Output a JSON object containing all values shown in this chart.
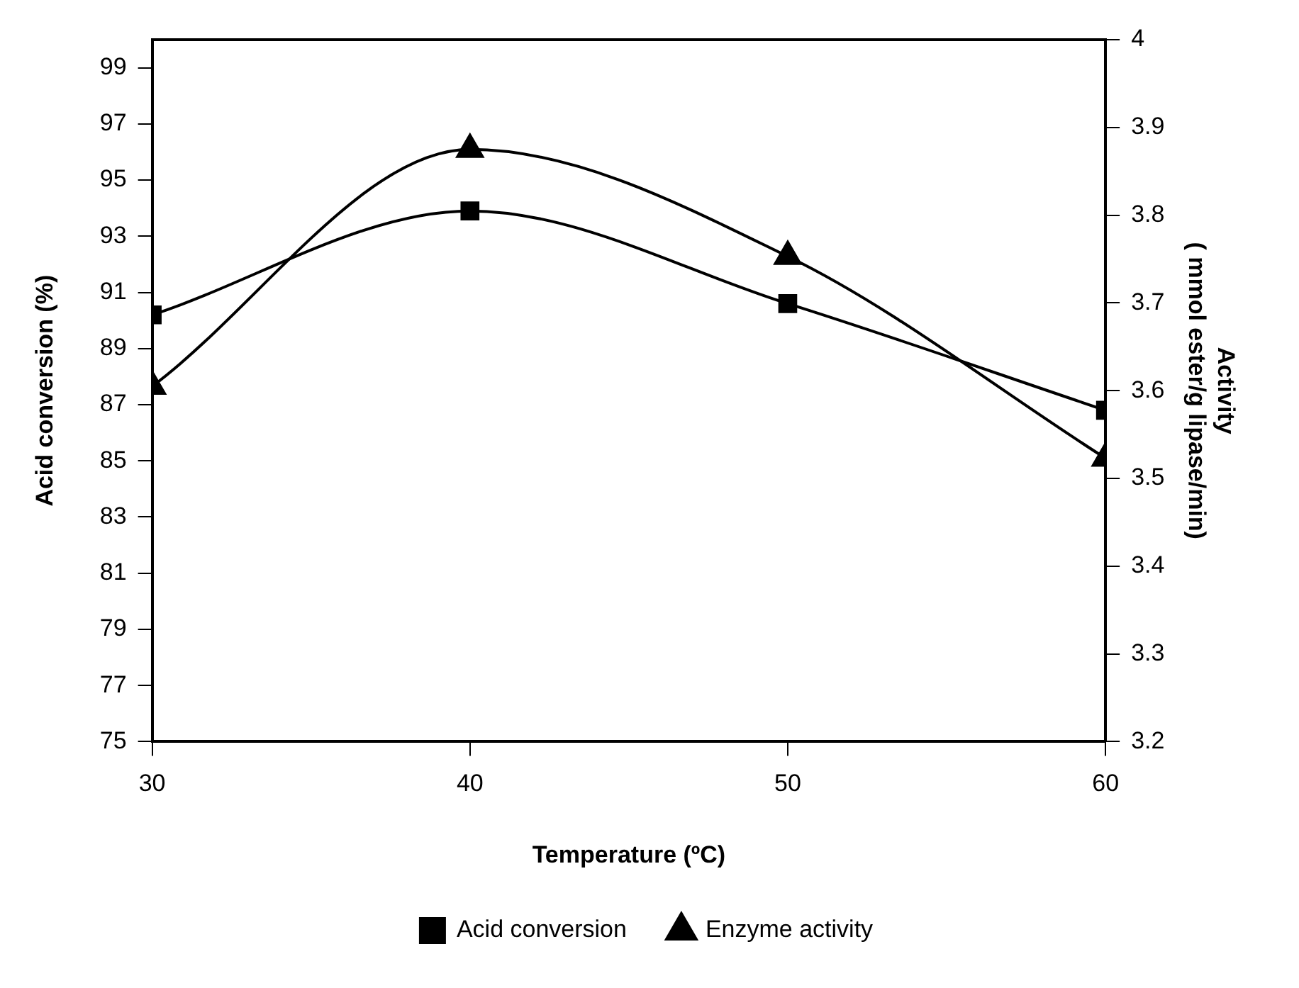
{
  "chart_data": {
    "type": "line",
    "x": [
      30,
      40,
      50,
      60
    ],
    "xlabel": "Temperature (ºC)",
    "ylabel": "Acid conversion (%)",
    "y2label": "Activity\n( mmol ester/g lipase/min)",
    "xlim": [
      30,
      60
    ],
    "xticks": [
      30,
      40,
      50,
      60
    ],
    "ylim": [
      75,
      100
    ],
    "yticks": [
      75,
      77,
      79,
      81,
      83,
      85,
      87,
      89,
      91,
      93,
      95,
      97,
      99
    ],
    "y2lim": [
      3.2,
      4
    ],
    "y2ticks": [
      3.2,
      3.3,
      3.4,
      3.5,
      3.6,
      3.7,
      3.8,
      3.9,
      4
    ],
    "series": [
      {
        "name": "Acid conversion",
        "color": "#000000",
        "marker": "square",
        "values": [
          90.2,
          93.9,
          90.6,
          86.8
        ]
      },
      {
        "name": "Enzyme activity",
        "color": "#000000",
        "marker": "triangle",
        "axis": "y2",
        "values": [
          3.605,
          3.875,
          3.753,
          3.523
        ]
      }
    ],
    "grid": false,
    "legend": "bottom",
    "line_style": "solid"
  }
}
